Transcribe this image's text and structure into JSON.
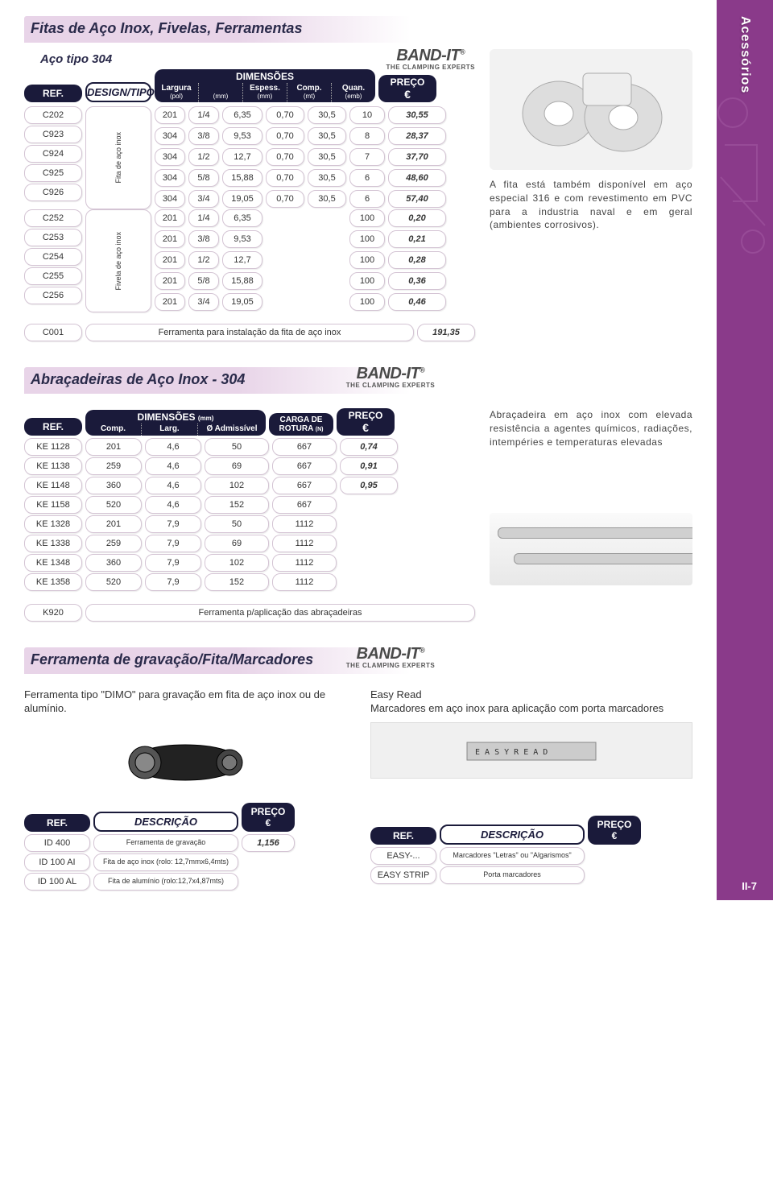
{
  "sidebar_label": "Acessórios",
  "brand": {
    "name": "BAND-IT",
    "reg": "®",
    "tagline": "THE CLAMPING EXPERTS"
  },
  "page_number": "II-7",
  "section1": {
    "title": "Fitas de Aço Inox, Fivelas, Ferramentas",
    "subtitle": "Aço tipo 304",
    "headers": {
      "ref": "REF.",
      "design": "DESIGN/TIPO",
      "dim": "DIMENSÕES",
      "larg": "Largura",
      "larg_u1": "(pol)",
      "larg_u2": "(mm)",
      "esp": "Espess.",
      "esp_u": "(mm)",
      "comp": "Comp.",
      "comp_u": "(mt)",
      "quan": "Quan.",
      "quan_u": "(emb)",
      "preco": "PREÇO",
      "euro": "€"
    },
    "group1_label": "Fita de aço inox",
    "group2_label": "Fivela de aço inox",
    "rows_g1": [
      {
        "ref": "C202",
        "tipo": "201",
        "pol": "1/4",
        "mm": "6,35",
        "esp": "0,70",
        "comp": "30,5",
        "q": "10",
        "p": "30,55"
      },
      {
        "ref": "C923",
        "tipo": "304",
        "pol": "3/8",
        "mm": "9,53",
        "esp": "0,70",
        "comp": "30,5",
        "q": "8",
        "p": "28,37"
      },
      {
        "ref": "C924",
        "tipo": "304",
        "pol": "1/2",
        "mm": "12,7",
        "esp": "0,70",
        "comp": "30,5",
        "q": "7",
        "p": "37,70"
      },
      {
        "ref": "C925",
        "tipo": "304",
        "pol": "5/8",
        "mm": "15,88",
        "esp": "0,70",
        "comp": "30,5",
        "q": "6",
        "p": "48,60"
      },
      {
        "ref": "C926",
        "tipo": "304",
        "pol": "3/4",
        "mm": "19,05",
        "esp": "0,70",
        "comp": "30,5",
        "q": "6",
        "p": "57,40"
      }
    ],
    "rows_g2": [
      {
        "ref": "C252",
        "tipo": "201",
        "pol": "1/4",
        "mm": "6,35",
        "q": "100",
        "p": "0,20"
      },
      {
        "ref": "C253",
        "tipo": "201",
        "pol": "3/8",
        "mm": "9,53",
        "q": "100",
        "p": "0,21"
      },
      {
        "ref": "C254",
        "tipo": "201",
        "pol": "1/2",
        "mm": "12,7",
        "q": "100",
        "p": "0,28"
      },
      {
        "ref": "C255",
        "tipo": "201",
        "pol": "5/8",
        "mm": "15,88",
        "q": "100",
        "p": "0,36"
      },
      {
        "ref": "C256",
        "tipo": "201",
        "pol": "3/4",
        "mm": "19,05",
        "q": "100",
        "p": "0,46"
      }
    ],
    "footer": {
      "ref": "C001",
      "desc": "Ferramenta para instalação da fita de aço inox",
      "p": "191,35"
    },
    "side_text": "A fita está também disponível em aço especial 316 e com revestimento em PVC para a industria naval e em geral (ambientes corrosivos)."
  },
  "section2": {
    "title": "Abraçadeiras de Aço Inox - 304",
    "headers": {
      "ref": "REF.",
      "dim": "DIMENSÕES",
      "dim_u": "(mm)",
      "comp": "Comp.",
      "larg": "Larg.",
      "adm": "Ø Admissível",
      "carga": "CARGA DE ROTURA",
      "carga_u": "(N)",
      "preco": "PREÇO",
      "euro": "€"
    },
    "rows": [
      {
        "ref": "KE 1128",
        "c": "201",
        "l": "4,6",
        "a": "50",
        "cg": "667",
        "p": "0,74"
      },
      {
        "ref": "KE 1138",
        "c": "259",
        "l": "4,6",
        "a": "69",
        "cg": "667",
        "p": "0,91"
      },
      {
        "ref": "KE 1148",
        "c": "360",
        "l": "4,6",
        "a": "102",
        "cg": "667",
        "p": "0,95"
      },
      {
        "ref": "KE 1158",
        "c": "520",
        "l": "4,6",
        "a": "152",
        "cg": "667",
        "p": ""
      },
      {
        "ref": "KE 1328",
        "c": "201",
        "l": "7,9",
        "a": "50",
        "cg": "1112",
        "p": ""
      },
      {
        "ref": "KE 1338",
        "c": "259",
        "l": "7,9",
        "a": "69",
        "cg": "1112",
        "p": ""
      },
      {
        "ref": "KE 1348",
        "c": "360",
        "l": "7,9",
        "a": "102",
        "cg": "1112",
        "p": ""
      },
      {
        "ref": "KE 1358",
        "c": "520",
        "l": "7,9",
        "a": "152",
        "cg": "1112",
        "p": ""
      }
    ],
    "footer": {
      "ref": "K920",
      "desc": "Ferramenta p/aplicação das abraçadeiras"
    },
    "side_text": "Abraçadeira em aço inox com elevada resistência a agentes químicos, radiações, intempéries e temperaturas elevadas"
  },
  "section3": {
    "title": "Ferramenta de gravação/Fita/Marcadores",
    "left_text": "Ferramenta tipo \"DIMO\" para gravação em fita de aço inox ou de alumínio.",
    "right_title": "Easy Read",
    "right_text": "Marcadores em aço inox para aplicação com porta marcadores",
    "headers": {
      "ref": "REF.",
      "desc": "DESCRIÇÃO",
      "preco": "PREÇO",
      "euro": "€"
    },
    "left_rows": [
      {
        "ref": "ID 400",
        "desc": "Ferramenta de gravação",
        "p": "1,156"
      },
      {
        "ref": "ID 100 AI",
        "desc": "Fita de aço inox (rolo: 12,7mmx6,4mts)",
        "p": ""
      },
      {
        "ref": "ID 100 AL",
        "desc": "Fita de alumínio (rolo:12,7x4,87mts)",
        "p": ""
      }
    ],
    "right_rows": [
      {
        "ref": "EASY-...",
        "desc": "Marcadores \"Letras\" ou \"Algarismos\"",
        "p": ""
      },
      {
        "ref": "EASY STRIP",
        "desc": "Porta marcadores",
        "p": ""
      }
    ]
  },
  "colors": {
    "pill": "#1a1a3a",
    "title_bg": "#e8d4e8",
    "border": "#d4c4d4",
    "purple": "#8a3a8a"
  }
}
